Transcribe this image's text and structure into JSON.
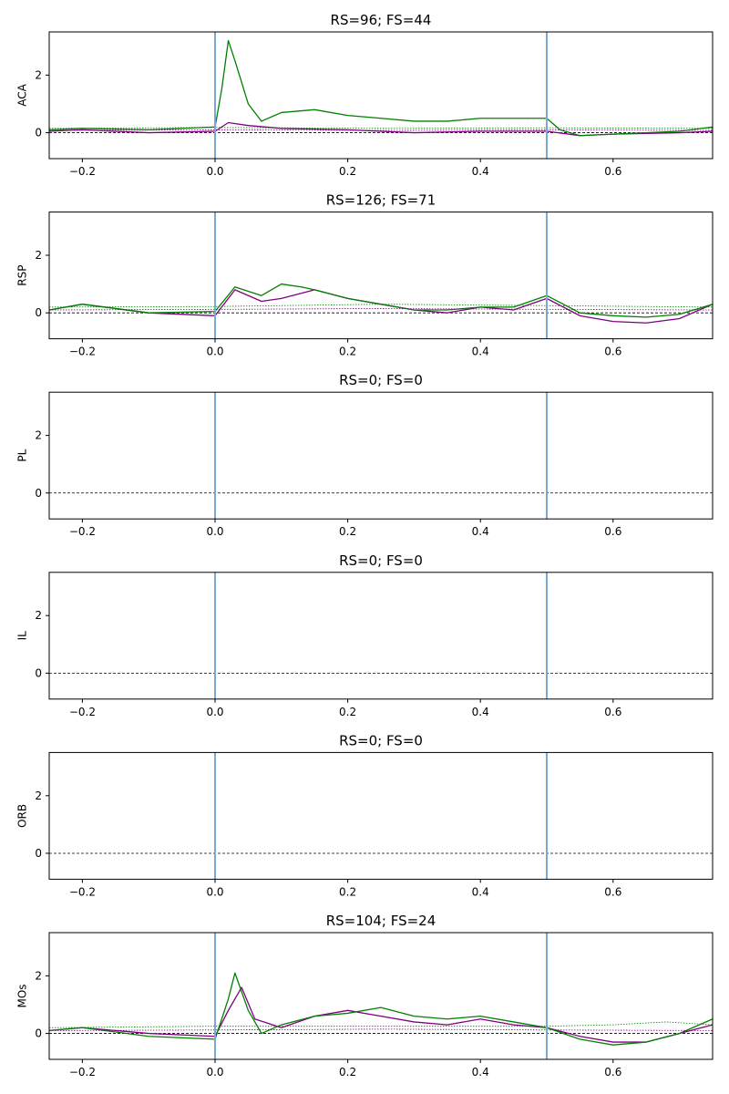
{
  "chart_data": [
    {
      "type": "line",
      "title": "RS=96; FS=44",
      "ylabel": "ACA",
      "xlim": [
        -0.25,
        0.75
      ],
      "ylim": [
        -0.9,
        3.5
      ],
      "xticks": [
        -0.2,
        0.0,
        0.2,
        0.4,
        0.6
      ],
      "xtick_labels": [
        "−0.2",
        "0.0",
        "0.2",
        "0.4",
        "0.6"
      ],
      "yticks": [
        0,
        2
      ],
      "ytick_labels": [
        "0",
        "2"
      ],
      "vlines": [
        0.0,
        0.5
      ],
      "hline": 0,
      "series": [
        {
          "color": "#800080",
          "style": "solid",
          "x": [
            -0.25,
            -0.2,
            -0.1,
            0.0,
            0.02,
            0.05,
            0.1,
            0.2,
            0.3,
            0.4,
            0.5,
            0.55,
            0.6,
            0.7,
            0.75
          ],
          "y": [
            0.05,
            0.1,
            0.0,
            0.05,
            0.35,
            0.25,
            0.15,
            0.1,
            0.0,
            0.05,
            0.05,
            -0.1,
            -0.05,
            0.0,
            0.05
          ]
        },
        {
          "color": "#008000",
          "style": "solid",
          "x": [
            -0.25,
            -0.2,
            -0.1,
            0.0,
            0.01,
            0.02,
            0.03,
            0.05,
            0.07,
            0.1,
            0.15,
            0.2,
            0.25,
            0.3,
            0.35,
            0.4,
            0.45,
            0.5,
            0.52,
            0.55,
            0.6,
            0.7,
            0.75
          ],
          "y": [
            0.1,
            0.15,
            0.1,
            0.2,
            1.5,
            3.2,
            2.5,
            1.0,
            0.4,
            0.7,
            0.8,
            0.6,
            0.5,
            0.4,
            0.4,
            0.5,
            0.5,
            0.5,
            0.1,
            -0.1,
            -0.05,
            0.05,
            0.2
          ]
        },
        {
          "color": "#008000",
          "style": "dotted",
          "x": [
            -0.25,
            0.0,
            0.25,
            0.5,
            0.75
          ],
          "y": [
            0.15,
            0.18,
            0.15,
            0.17,
            0.15
          ]
        },
        {
          "color": "#800080",
          "style": "dotted",
          "x": [
            -0.25,
            0.0,
            0.25,
            0.5,
            0.75
          ],
          "y": [
            0.08,
            0.1,
            0.08,
            0.1,
            0.08
          ]
        }
      ]
    },
    {
      "type": "line",
      "title": "RS=126; FS=71",
      "ylabel": "RSP",
      "xlim": [
        -0.25,
        0.75
      ],
      "ylim": [
        -0.9,
        3.5
      ],
      "xticks": [
        -0.2,
        0.0,
        0.2,
        0.4,
        0.6
      ],
      "xtick_labels": [
        "−0.2",
        "0.0",
        "0.2",
        "0.4",
        "0.6"
      ],
      "yticks": [
        0,
        2
      ],
      "ytick_labels": [
        "0",
        "2"
      ],
      "vlines": [
        0.0,
        0.5
      ],
      "hline": 0,
      "series": [
        {
          "color": "#800080",
          "style": "solid",
          "x": [
            -0.25,
            -0.2,
            -0.1,
            0.0,
            0.03,
            0.07,
            0.1,
            0.15,
            0.2,
            0.25,
            0.3,
            0.35,
            0.4,
            0.45,
            0.5,
            0.55,
            0.6,
            0.65,
            0.7,
            0.75
          ],
          "y": [
            0.1,
            0.3,
            0.0,
            -0.1,
            0.8,
            0.4,
            0.5,
            0.8,
            0.5,
            0.3,
            0.1,
            0.0,
            0.2,
            0.1,
            0.5,
            -0.1,
            -0.3,
            -0.35,
            -0.2,
            0.3
          ]
        },
        {
          "color": "#008000",
          "style": "solid",
          "x": [
            -0.25,
            -0.2,
            -0.1,
            0.0,
            0.03,
            0.07,
            0.1,
            0.13,
            0.15,
            0.2,
            0.25,
            0.3,
            0.35,
            0.4,
            0.45,
            0.5,
            0.55,
            0.6,
            0.65,
            0.7,
            0.75
          ],
          "y": [
            0.1,
            0.3,
            0.0,
            0.05,
            0.9,
            0.6,
            1.0,
            0.9,
            0.8,
            0.5,
            0.3,
            0.1,
            0.1,
            0.2,
            0.2,
            0.6,
            0.0,
            -0.1,
            -0.15,
            -0.05,
            0.3
          ]
        },
        {
          "color": "#008000",
          "style": "dotted",
          "x": [
            -0.25,
            0.0,
            0.25,
            0.5,
            0.75
          ],
          "y": [
            0.2,
            0.22,
            0.3,
            0.25,
            0.2
          ]
        },
        {
          "color": "#800080",
          "style": "dotted",
          "x": [
            -0.25,
            0.0,
            0.25,
            0.5,
            0.75
          ],
          "y": [
            0.1,
            0.12,
            0.15,
            0.12,
            0.1
          ]
        }
      ]
    },
    {
      "type": "line",
      "title": "RS=0; FS=0",
      "ylabel": "PL",
      "xlim": [
        -0.25,
        0.75
      ],
      "ylim": [
        -0.9,
        3.5
      ],
      "xticks": [
        -0.2,
        0.0,
        0.2,
        0.4,
        0.6
      ],
      "xtick_labels": [
        "−0.2",
        "0.0",
        "0.2",
        "0.4",
        "0.6"
      ],
      "yticks": [
        0,
        2
      ],
      "ytick_labels": [
        "0",
        "2"
      ],
      "vlines": [
        0.0,
        0.5
      ],
      "hline": 0,
      "series": []
    },
    {
      "type": "line",
      "title": "RS=0; FS=0",
      "ylabel": "IL",
      "xlim": [
        -0.25,
        0.75
      ],
      "ylim": [
        -0.9,
        3.5
      ],
      "xticks": [
        -0.2,
        0.0,
        0.2,
        0.4,
        0.6
      ],
      "xtick_labels": [
        "−0.2",
        "0.0",
        "0.2",
        "0.4",
        "0.6"
      ],
      "yticks": [
        0,
        2
      ],
      "ytick_labels": [
        "0",
        "2"
      ],
      "vlines": [
        0.0,
        0.5
      ],
      "hline": 0,
      "series": []
    },
    {
      "type": "line",
      "title": "RS=0; FS=0",
      "ylabel": "ORB",
      "xlim": [
        -0.25,
        0.75
      ],
      "ylim": [
        -0.9,
        3.5
      ],
      "xticks": [
        -0.2,
        0.0,
        0.2,
        0.4,
        0.6
      ],
      "xtick_labels": [
        "−0.2",
        "0.0",
        "0.2",
        "0.4",
        "0.6"
      ],
      "yticks": [
        0,
        2
      ],
      "ytick_labels": [
        "0",
        "2"
      ],
      "vlines": [
        0.0,
        0.5
      ],
      "hline": 0,
      "series": []
    },
    {
      "type": "line",
      "title": "RS=104; FS=24",
      "ylabel": "MOs",
      "xlim": [
        -0.25,
        0.75
      ],
      "ylim": [
        -0.9,
        3.5
      ],
      "xticks": [
        -0.2,
        0.0,
        0.2,
        0.4,
        0.6
      ],
      "xtick_labels": [
        "−0.2",
        "0.0",
        "0.2",
        "0.4",
        "0.6"
      ],
      "yticks": [
        0,
        2
      ],
      "ytick_labels": [
        "0",
        "2"
      ],
      "vlines": [
        0.0,
        0.5
      ],
      "hline": 0,
      "series": [
        {
          "color": "#800080",
          "style": "solid",
          "x": [
            -0.25,
            -0.2,
            -0.1,
            0.0,
            0.02,
            0.04,
            0.06,
            0.1,
            0.15,
            0.2,
            0.25,
            0.3,
            0.35,
            0.4,
            0.45,
            0.5,
            0.55,
            0.6,
            0.65,
            0.7,
            0.75
          ],
          "y": [
            0.1,
            0.2,
            0.0,
            -0.1,
            0.8,
            1.6,
            0.5,
            0.2,
            0.6,
            0.8,
            0.6,
            0.4,
            0.3,
            0.5,
            0.3,
            0.2,
            -0.1,
            -0.3,
            -0.3,
            0.0,
            0.3
          ]
        },
        {
          "color": "#008000",
          "style": "solid",
          "x": [
            -0.25,
            -0.2,
            -0.1,
            0.0,
            0.02,
            0.03,
            0.05,
            0.07,
            0.1,
            0.15,
            0.2,
            0.25,
            0.3,
            0.35,
            0.4,
            0.45,
            0.5,
            0.55,
            0.6,
            0.65,
            0.7,
            0.75
          ],
          "y": [
            0.1,
            0.2,
            -0.1,
            -0.2,
            1.2,
            2.1,
            0.8,
            0.0,
            0.3,
            0.6,
            0.7,
            0.9,
            0.6,
            0.5,
            0.6,
            0.4,
            0.2,
            -0.2,
            -0.4,
            -0.3,
            0.0,
            0.5
          ]
        },
        {
          "color": "#008000",
          "style": "dotted",
          "x": [
            -0.25,
            0.0,
            0.25,
            0.5,
            0.6,
            0.68,
            0.75
          ],
          "y": [
            0.2,
            0.25,
            0.25,
            0.25,
            0.3,
            0.4,
            0.3
          ]
        },
        {
          "color": "#800080",
          "style": "dotted",
          "x": [
            -0.25,
            0.0,
            0.25,
            0.5,
            0.75
          ],
          "y": [
            0.1,
            0.12,
            0.15,
            0.12,
            0.1
          ]
        }
      ]
    }
  ]
}
